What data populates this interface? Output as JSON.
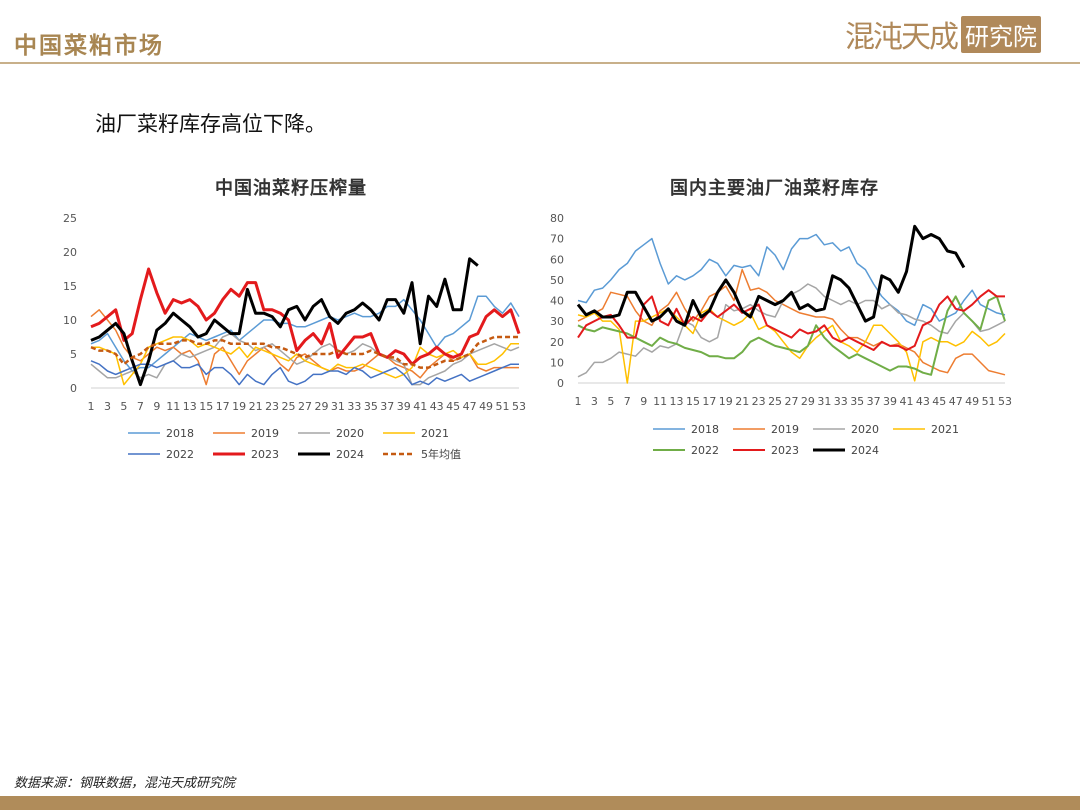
{
  "header": {
    "title": "中国菜粕市场"
  },
  "logo": {
    "script_text": "混沌天成",
    "box_text": "研究院"
  },
  "subtitle": "油厂菜籽库存高位下降。",
  "source": "数据来源：钢联数据，混沌天成研究院",
  "colors": {
    "accent": "#a88652",
    "footer": "#b08c5a",
    "s2018": "#5b9bd5",
    "s2019": "#ed7d31",
    "s2020": "#a5a5a5",
    "s2021": "#ffc000",
    "s2022_left": "#4472c4",
    "s2022_right": "#70ad47",
    "s2023": "#e31a1c",
    "s2024": "#000000",
    "avg5": "#c55a11"
  },
  "chart_data": [
    {
      "type": "line",
      "title": "中国油菜籽压榨量",
      "ylim": [
        0,
        25
      ],
      "yticks": [
        0,
        5,
        10,
        15,
        20,
        25
      ],
      "xlim": [
        1,
        53
      ],
      "xticks": [
        1,
        3,
        5,
        7,
        9,
        11,
        13,
        15,
        17,
        19,
        21,
        23,
        25,
        27,
        29,
        31,
        33,
        35,
        37,
        39,
        41,
        43,
        45,
        47,
        49,
        51,
        53
      ],
      "legend": "bottom",
      "series": [
        {
          "name": "2018",
          "color": "#5b9bd5",
          "width": 1.5,
          "dash": "",
          "values": [
            6.5,
            7,
            8,
            6,
            4,
            2.5,
            3,
            3,
            4,
            5,
            6,
            7,
            8,
            7.5,
            7,
            7.5,
            8,
            8.5,
            7,
            8,
            9,
            10,
            10,
            9.5,
            9.5,
            9,
            9,
            9.5,
            10,
            10.5,
            10,
            10.5,
            11,
            10.5,
            10.5,
            11,
            12,
            12,
            13,
            11.5,
            10,
            8,
            6,
            7.5,
            8,
            9,
            10,
            13.5,
            13.5,
            12,
            11,
            12.5,
            10.5
          ]
        },
        {
          "name": "2019",
          "color": "#ed7d31",
          "width": 1.5,
          "dash": "",
          "values": [
            10.5,
            11.5,
            10,
            8.5,
            6,
            4.5,
            4,
            5,
            6,
            5.5,
            6,
            5,
            5.5,
            4,
            0.5,
            5,
            6,
            4,
            2,
            4,
            5,
            6,
            5,
            3.5,
            2.5,
            4.5,
            5,
            4,
            3,
            2.5,
            3,
            2.5,
            2.5,
            3,
            4,
            5,
            4.5,
            3.5,
            3,
            2.5,
            1.5,
            3,
            4,
            5,
            4,
            4.5,
            5,
            3,
            2.5,
            3,
            3,
            3,
            3
          ]
        },
        {
          "name": "2020",
          "color": "#a5a5a5",
          "width": 1.5,
          "dash": "",
          "values": [
            3.5,
            2.5,
            1.5,
            1.5,
            2,
            2.5,
            1.5,
            2,
            1.5,
            3.5,
            4,
            5,
            4.5,
            5,
            5.5,
            6,
            7.5,
            8,
            7,
            6.5,
            5.5,
            6,
            6.5,
            5.5,
            4.5,
            3.5,
            4,
            5,
            6,
            6.5,
            5.5,
            5,
            5.5,
            6.5,
            6,
            5,
            4.5,
            4,
            3.5,
            0.5,
            0.5,
            1.5,
            2,
            2.5,
            3.5,
            4,
            5,
            5.5,
            6,
            6.5,
            6,
            5.5,
            6
          ]
        },
        {
          "name": "2021",
          "color": "#ffc000",
          "width": 1.5,
          "dash": "",
          "values": [
            6,
            6,
            5.5,
            5,
            0.5,
            2,
            3.5,
            6,
            6.5,
            7,
            7.5,
            7.5,
            7,
            6,
            6.5,
            6,
            5.5,
            5,
            6,
            4.5,
            6,
            5.5,
            5,
            4.5,
            4,
            5,
            4,
            3.5,
            3,
            2.5,
            3.5,
            3,
            3,
            3.5,
            3,
            2.5,
            2,
            1.5,
            2,
            3,
            6,
            5,
            4.5,
            5,
            5.5,
            4.5,
            5,
            3.5,
            3.5,
            4,
            5,
            6.5,
            6.5
          ]
        },
        {
          "name": "2022",
          "color": "#4472c4",
          "width": 1.5,
          "dash": "",
          "values": [
            4,
            3.5,
            2.5,
            2,
            2.5,
            3,
            3.5,
            3.5,
            3,
            3.5,
            4,
            3,
            3,
            3.5,
            2,
            3,
            3,
            2,
            0.5,
            2,
            1,
            0.5,
            2,
            3,
            1,
            0.5,
            1,
            2,
            2,
            2.5,
            2.5,
            2,
            3,
            2.5,
            1.5,
            2,
            2.5,
            3,
            2,
            0.5,
            1,
            0.5,
            1.5,
            1,
            1.5,
            2,
            1,
            1.5,
            2,
            2.5,
            3,
            3.5,
            3.5
          ]
        },
        {
          "name": "2023",
          "color": "#e31a1c",
          "width": 3,
          "dash": "",
          "values": [
            9,
            9.5,
            10.5,
            11.5,
            7,
            8,
            13,
            17.5,
            14,
            11,
            13,
            12.5,
            13,
            12,
            10,
            11,
            13,
            14.5,
            13.5,
            15.5,
            15.5,
            11.5,
            11.5,
            11,
            10,
            5.5,
            7,
            8,
            6.5,
            9.5,
            4.5,
            6,
            7.5,
            7.5,
            8,
            5,
            4.5,
            5.5,
            5,
            3.5,
            4.5,
            5,
            6,
            5,
            4.5,
            5,
            7.5,
            8,
            10.5,
            11.5,
            10.5,
            11.5,
            8
          ]
        },
        {
          "name": "2024",
          "color": "#000000",
          "width": 3,
          "dash": "",
          "values": [
            7,
            7.5,
            8.5,
            9.5,
            8,
            4,
            0.5,
            4,
            8.5,
            9.5,
            11,
            10,
            9,
            7.5,
            8,
            10,
            9,
            8,
            8,
            14.5,
            11,
            11,
            10.5,
            9,
            11.5,
            12,
            10,
            12,
            13,
            10.5,
            9.5,
            11,
            11.5,
            12.5,
            11.5,
            10,
            13,
            13,
            11,
            15.5,
            6.5,
            13.5,
            12,
            16,
            11.5,
            11.5,
            19,
            18
          ]
        },
        {
          "name": "5年均值",
          "color": "#c55a11",
          "width": 2.5,
          "dash": "5,3",
          "values": [
            6,
            5.5,
            5.5,
            5,
            3.5,
            4.5,
            5,
            6,
            6.5,
            6.5,
            6.5,
            7,
            7,
            6.5,
            6.5,
            7,
            7,
            6.5,
            6.5,
            6.5,
            6.5,
            6.5,
            6,
            6,
            5.5,
            5,
            4.5,
            5,
            5,
            5,
            5.5,
            5,
            5,
            5,
            5.5,
            5,
            4.5,
            4.5,
            3.5,
            3.5,
            3,
            3,
            3.5,
            4,
            4,
            4.5,
            5,
            6.5,
            7,
            7.5,
            7.5,
            7.5,
            7.5
          ]
        }
      ]
    },
    {
      "type": "line",
      "title": "国内主要油厂油菜籽库存",
      "ylim": [
        0,
        80
      ],
      "yticks": [
        0,
        10,
        20,
        30,
        40,
        50,
        60,
        70,
        80
      ],
      "xlim": [
        1,
        53
      ],
      "xticks": [
        1,
        3,
        5,
        7,
        9,
        11,
        13,
        15,
        17,
        19,
        21,
        23,
        25,
        27,
        29,
        31,
        33,
        35,
        37,
        39,
        41,
        43,
        45,
        47,
        49,
        51,
        53
      ],
      "legend": "bottom",
      "series": [
        {
          "name": "2018",
          "color": "#5b9bd5",
          "width": 1.5,
          "dash": "",
          "values": [
            40,
            39,
            45,
            46,
            50,
            55,
            58,
            64,
            67,
            70,
            58,
            48,
            52,
            50,
            52,
            55,
            60,
            58,
            52,
            57,
            56,
            57,
            52,
            66,
            62,
            55,
            65,
            70,
            70,
            72,
            67,
            68,
            64,
            66,
            58,
            55,
            48,
            42,
            38,
            35,
            30,
            28,
            38,
            36,
            30,
            32,
            34,
            40,
            45,
            38,
            36,
            34,
            33
          ]
        },
        {
          "name": "2019",
          "color": "#ed7d31",
          "width": 1.5,
          "dash": "",
          "values": [
            30,
            32,
            34,
            36,
            44,
            43,
            42,
            35,
            30,
            28,
            35,
            38,
            44,
            36,
            30,
            35,
            42,
            44,
            47,
            40,
            55,
            45,
            46,
            44,
            40,
            38,
            36,
            34,
            33,
            32,
            32,
            31,
            26,
            22,
            22,
            20,
            18,
            20,
            18,
            19,
            17,
            15,
            10,
            8,
            6,
            5,
            12,
            14,
            14,
            10,
            6,
            5,
            4
          ]
        },
        {
          "name": "2020",
          "color": "#a5a5a5",
          "width": 1.5,
          "dash": "",
          "values": [
            3,
            5,
            10,
            10,
            12,
            15,
            14,
            13,
            17,
            15,
            18,
            17,
            19,
            30,
            28,
            22,
            20,
            22,
            38,
            35,
            36,
            38,
            35,
            33,
            32,
            40,
            43,
            45,
            48,
            46,
            42,
            40,
            38,
            40,
            38,
            40,
            40,
            36,
            38,
            34,
            33,
            31,
            30,
            28,
            25,
            24,
            30,
            34,
            30,
            25,
            26,
            28,
            30
          ]
        },
        {
          "name": "2021",
          "color": "#ffc000",
          "width": 1.5,
          "dash": "",
          "values": [
            33,
            32,
            34,
            30,
            30,
            26,
            0,
            30,
            30,
            32,
            34,
            36,
            32,
            28,
            24,
            34,
            36,
            32,
            30,
            28,
            30,
            34,
            26,
            28,
            25,
            20,
            15,
            12,
            18,
            22,
            25,
            28,
            20,
            18,
            15,
            20,
            28,
            28,
            24,
            20,
            15,
            1,
            20,
            22,
            20,
            20,
            18,
            20,
            25,
            22,
            18,
            20,
            24
          ]
        },
        {
          "name": "2022",
          "color": "#70ad47",
          "width": 2,
          "dash": "",
          "values": [
            28,
            26,
            25,
            27,
            26,
            25,
            24,
            22,
            20,
            18,
            22,
            20,
            19,
            17,
            16,
            15,
            13,
            13,
            12,
            12,
            15,
            20,
            22,
            20,
            18,
            17,
            16,
            15,
            18,
            28,
            22,
            18,
            15,
            12,
            14,
            12,
            10,
            8,
            6,
            8,
            8,
            7,
            5,
            4,
            20,
            35,
            42,
            34,
            30,
            26,
            40,
            42,
            30
          ]
        },
        {
          "name": "2023",
          "color": "#e31a1c",
          "width": 2,
          "dash": "",
          "values": [
            22,
            28,
            30,
            32,
            33,
            28,
            22,
            22,
            38,
            42,
            30,
            28,
            36,
            28,
            32,
            30,
            35,
            32,
            35,
            38,
            34,
            36,
            38,
            28,
            26,
            24,
            22,
            26,
            24,
            25,
            28,
            22,
            20,
            22,
            20,
            18,
            16,
            20,
            18,
            18,
            16,
            18,
            28,
            30,
            38,
            42,
            36,
            35,
            38,
            42,
            45,
            42,
            42
          ]
        },
        {
          "name": "2024",
          "color": "#000000",
          "width": 3,
          "dash": "",
          "values": [
            38,
            33,
            35,
            32,
            32,
            33,
            44,
            44,
            37,
            30,
            32,
            36,
            30,
            28,
            40,
            32,
            35,
            44,
            50,
            44,
            35,
            32,
            42,
            40,
            38,
            40,
            44,
            36,
            38,
            35,
            36,
            52,
            50,
            46,
            38,
            30,
            32,
            52,
            50,
            44,
            54,
            76,
            70,
            72,
            70,
            64,
            63,
            56
          ]
        }
      ]
    }
  ]
}
